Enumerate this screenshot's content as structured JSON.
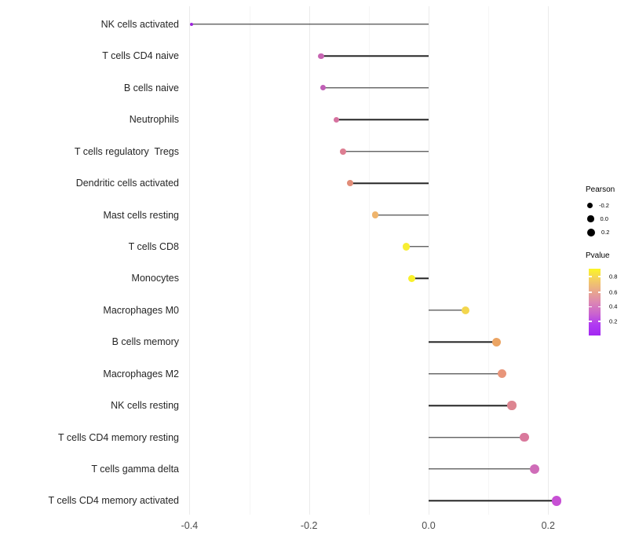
{
  "figure": {
    "background": "#ffffff"
  },
  "chart_data": {
    "type": "lollipop",
    "orientation": "horizontal",
    "title": "",
    "xlabel": "",
    "ylabel": "",
    "grid": "major+minor vertical, no axis lines",
    "x_tick_labels": [
      "-0.4",
      "-0.2",
      "0.0",
      "0.2"
    ],
    "x_tick_values": [
      -0.4,
      -0.2,
      0.0,
      0.2
    ],
    "xlim": [
      -0.42,
      0.24
    ],
    "baseline": 0.0,
    "categories": [
      "NK cells activated",
      "T cells CD4 naive",
      "B cells naive",
      "Neutrophils",
      "T cells regulatory  Tregs",
      "Dendritic cells activated",
      "Mast cells resting",
      "T cells CD8",
      "Monocytes",
      "Macrophages M0",
      "B cells memory",
      "Macrophages M2",
      "NK cells resting",
      "T cells CD4 memory resting",
      "T cells gamma delta",
      "T cells CD4 memory activated"
    ],
    "series": [
      {
        "name": "Pearson",
        "values": [
          -0.397,
          -0.18,
          -0.177,
          -0.154,
          -0.143,
          -0.131,
          -0.089,
          -0.037,
          -0.028,
          0.062,
          0.114,
          0.123,
          0.139,
          0.16,
          0.177,
          0.214
        ]
      }
    ],
    "point_colors": [
      "#9d24dc",
      "#c765b2",
      "#c05fb6",
      "#d6729f",
      "#dd7e92",
      "#e18d79",
      "#efb46c",
      "#f8ee33",
      "#f9f02b",
      "#f3d64d",
      "#eba463",
      "#e8957a",
      "#dd8591",
      "#d9799c",
      "#cf6cb8",
      "#c750d4"
    ],
    "stem_color": "#242424",
    "gridline_color": "#ebebeb"
  },
  "legend": {
    "size": {
      "title": "Pearson",
      "items": [
        {
          "label": "-0.2",
          "diameter": 7
        },
        {
          "label": "0.0",
          "diameter": 8.5
        },
        {
          "label": "0.2",
          "diameter": 10
        }
      ],
      "dot_color": "#000000"
    },
    "color": {
      "title": "Pvalue",
      "labels": [
        "0.8",
        "0.6",
        "0.4",
        "0.2"
      ],
      "label_positions_pct": [
        12,
        35,
        57,
        79
      ],
      "gradient_stops": [
        "#fcf524",
        "#f3cd63",
        "#e9a88b",
        "#dc87b2",
        "#cb66cd",
        "#b13af2",
        "#a328f2"
      ]
    }
  }
}
